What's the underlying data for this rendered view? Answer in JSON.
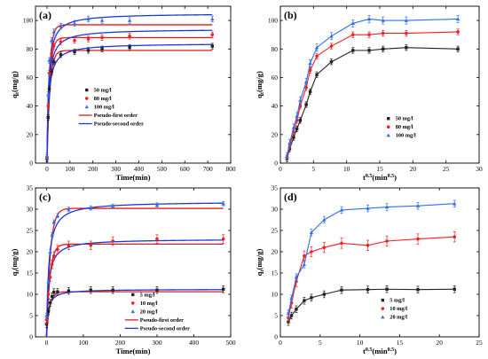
{
  "chart_data": [
    {
      "label": "(a)",
      "type": "scatter",
      "xlabel": "Time(min)",
      "ylabel": "qt(mg/g)",
      "xlim": [
        -50,
        800
      ],
      "ylim": [
        0,
        110
      ],
      "xticks": [
        0,
        100,
        200,
        300,
        400,
        500,
        600,
        700,
        800
      ],
      "yticks": [
        0,
        20,
        40,
        60,
        80,
        100
      ],
      "x": [
        0,
        5,
        10,
        20,
        30,
        60,
        120,
        180,
        240,
        360,
        720
      ],
      "series": [
        {
          "name": "50 mg/l",
          "marker": "square",
          "color": "#222222",
          "values": [
            3,
            32,
            52,
            64,
            71,
            76,
            78,
            79,
            80,
            81,
            82
          ],
          "err": 2
        },
        {
          "name": "80 mg/l",
          "marker": "circle",
          "color": "#ee2222",
          "values": [
            4,
            40,
            63,
            77,
            82,
            85,
            86,
            87,
            88,
            89,
            90
          ],
          "err": 2
        },
        {
          "name": "100 mg/l",
          "marker": "triangle",
          "color": "#2f6fe8",
          "values": [
            5,
            48,
            72,
            86,
            92,
            96,
            98,
            101,
            100,
            100,
            101
          ],
          "err": 2
        }
      ],
      "fit_lines": [
        {
          "name": "Pseudo-first order",
          "color": "#e81818",
          "model": "first",
          "params": [
            [
              79,
              0.08
            ],
            [
              88,
              0.085
            ],
            [
              97,
              0.09
            ]
          ]
        },
        {
          "name": "Pseudo-second order",
          "color": "#1d36d8",
          "model": "second",
          "params": [
            [
              84,
              0.0016
            ],
            [
              94,
              0.0015
            ],
            [
              105,
              0.0014
            ]
          ]
        }
      ],
      "legend_pos": "center"
    },
    {
      "label": "(b)",
      "type": "line",
      "xlabel": "t0.5(min0.5)",
      "xlabel_main": "t",
      "xlabel_sup": "0.5",
      "xlabel_mid": "(min",
      "xlabel_sup2": "0.5",
      "xlabel_end": ")",
      "ylabel": "qt(mg/g)",
      "xlim": [
        0,
        30
      ],
      "ylim": [
        0,
        110
      ],
      "xticks": [
        0,
        5,
        10,
        15,
        20,
        25,
        30
      ],
      "yticks": [
        0,
        20,
        40,
        60,
        80,
        100
      ],
      "x": [
        1,
        1.4,
        2,
        2.5,
        3,
        3.9,
        4.5,
        5.5,
        7.7,
        10.95,
        13.4,
        15.5,
        19,
        26.8
      ],
      "series": [
        {
          "name": "50 mg/l",
          "marker": "square",
          "color": "#222222",
          "values": [
            3,
            10,
            18,
            24,
            30,
            41,
            50,
            62,
            71,
            79,
            79,
            80,
            81,
            80
          ],
          "err": 2
        },
        {
          "name": "80 mg/l",
          "marker": "circle",
          "color": "#ee2222",
          "values": [
            4,
            12,
            22,
            30,
            40,
            53,
            65,
            75,
            82,
            90,
            90,
            91,
            91,
            92
          ],
          "err": 2
        },
        {
          "name": "100 mg/l",
          "marker": "triangle",
          "color": "#2f6fe8",
          "values": [
            5,
            14,
            25,
            33,
            44,
            57,
            70,
            81,
            89,
            98,
            101,
            100,
            100,
            101
          ],
          "err": 2.5
        }
      ],
      "legend_pos": "lower-right"
    },
    {
      "label": "(c)",
      "type": "scatter",
      "xlabel": "Time(min)",
      "ylabel": "qt(mg/g)",
      "xlim": [
        -30,
        500
      ],
      "ylim": [
        0,
        35
      ],
      "xticks": [
        0,
        100,
        200,
        300,
        400,
        500
      ],
      "yticks": [
        0,
        5,
        10,
        15,
        20,
        25,
        30,
        35
      ],
      "x": [
        0,
        5,
        10,
        15,
        20,
        30,
        60,
        120,
        180,
        300,
        480
      ],
      "series": [
        {
          "name": "5 mg/l",
          "marker": "square",
          "color": "#222222",
          "values": [
            3,
            6,
            8,
            9.5,
            10.5,
            10.6,
            10.8,
            11,
            11,
            11,
            11.2
          ],
          "err": 0.8
        },
        {
          "name": "10 mg/l",
          "marker": "circle",
          "color": "#ee2222",
          "values": [
            4,
            10,
            14,
            17,
            19,
            20.5,
            21.5,
            21.5,
            22.5,
            23,
            23
          ],
          "err": 1
        },
        {
          "name": "20 mg/l",
          "marker": "triangle",
          "color": "#2f6fe8",
          "values": [
            5,
            13,
            20,
            24,
            27,
            28.5,
            30,
            30.3,
            30.7,
            31,
            31.3
          ],
          "err": 0.5
        }
      ],
      "fit_lines": [
        {
          "name": "Pseudo-first order",
          "color": "#e81818",
          "model": "first",
          "params": [
            [
              10.6,
              0.12
            ],
            [
              21.8,
              0.11
            ],
            [
              30.2,
              0.1
            ]
          ]
        },
        {
          "name": "Pseudo-second order",
          "color": "#1d36d8",
          "model": "second",
          "params": [
            [
              11.2,
              0.02
            ],
            [
              23.0,
              0.008
            ],
            [
              31.8,
              0.0055
            ]
          ]
        }
      ],
      "legend_pos": "lower-right"
    },
    {
      "label": "(d)",
      "type": "line",
      "xlabel": "t0.5(min0.5)",
      "xlabel_main": "t",
      "xlabel_sup": "0.5",
      "xlabel_mid": "(min",
      "xlabel_sup2": "0.5",
      "xlabel_end": ")",
      "ylabel": "qt(mg/g)",
      "xlim": [
        0,
        25
      ],
      "ylim": [
        0,
        35
      ],
      "xticks": [
        0,
        5,
        10,
        15,
        20,
        25
      ],
      "yticks": [
        0,
        5,
        10,
        15,
        20,
        25,
        30,
        35
      ],
      "x": [
        1,
        1.4,
        2,
        3,
        3.9,
        5.5,
        7.7,
        11,
        13.4,
        17.3,
        21.9
      ],
      "series": [
        {
          "name": "5 mg/l",
          "marker": "square",
          "color": "#222222",
          "values": [
            3.5,
            5,
            6.5,
            8.5,
            9.2,
            10,
            11,
            11.1,
            11.2,
            11.1,
            11.2
          ],
          "err": 0.8
        },
        {
          "name": "10 mg/l",
          "marker": "circle",
          "color": "#ee2222",
          "values": [
            4.5,
            8,
            13,
            19,
            20,
            21,
            22,
            21.5,
            22.5,
            23,
            23.5
          ],
          "err": 1.2
        },
        {
          "name": "20 mg/l",
          "marker": "triangle",
          "color": "#2f6fe8",
          "values": [
            5.5,
            9,
            14,
            17,
            24.5,
            27.5,
            29.8,
            30.2,
            30.5,
            30.8,
            31.3
          ],
          "err": 0.8
        }
      ],
      "legend_pos": "lower-right"
    }
  ]
}
